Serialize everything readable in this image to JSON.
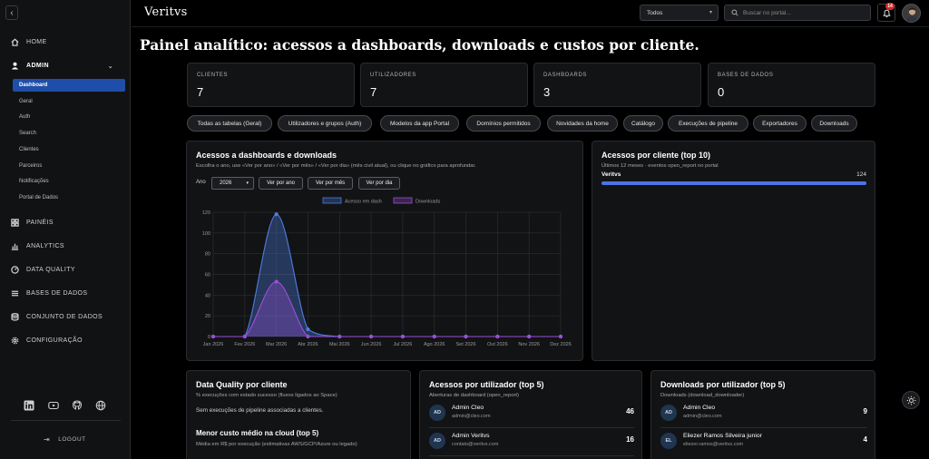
{
  "sidebar": {
    "items": [
      {
        "label": "HOME",
        "icon": "home-icon"
      },
      {
        "label": "ADMIN",
        "icon": "user-icon"
      },
      {
        "label": "PAINÉIS",
        "icon": "grid-icon"
      },
      {
        "label": "ANALYTICS",
        "icon": "bar-chart-icon"
      },
      {
        "label": "DATA QUALITY",
        "icon": "gauge-icon"
      },
      {
        "label": "BASES DE DADOS",
        "icon": "list-icon"
      },
      {
        "label": "CONJUNTO DE DADOS",
        "icon": "database-icon"
      },
      {
        "label": "CONFIGURAÇÃO",
        "icon": "gear-icon"
      }
    ],
    "admin_sub": [
      "Dashboard",
      "Geral",
      "Auth",
      "Search",
      "Clientes",
      "Parceiros",
      "Notificações",
      "Portal de Dados"
    ],
    "logout_label": "LOGOUT",
    "social": [
      "linkedin-icon",
      "youtube-icon",
      "github-icon",
      "globe-icon"
    ]
  },
  "topbar": {
    "logo": "Veritvs",
    "filter_value": "Todos",
    "search_placeholder": "Buscar no portal...",
    "notification_count": "14"
  },
  "page": {
    "title": "Painel analítico: acessos a dashboards, downloads e custos por cliente."
  },
  "stats": [
    {
      "label": "CLIENTES",
      "value": "7"
    },
    {
      "label": "UTILIZADORES",
      "value": "7"
    },
    {
      "label": "DASHBOARDS",
      "value": "3"
    },
    {
      "label": "BASES DE DADOS",
      "value": "0"
    }
  ],
  "chips": [
    "Todas as tabelas (Geral)",
    "Utilizadores e grupos (Auth)",
    "Modelos da app Portal",
    "Domínios permitidos",
    "Novidades da home",
    "Catálogo",
    "Execuções de pipeline",
    "Exportadores",
    "Downloads"
  ],
  "access_card": {
    "title": "Acessos a dashboards e downloads",
    "subtitle": "Escolha o ano, use «Ver por ano» / «Ver por mês» / «Ver por dia» (mês civil atual), ou clique no gráfico para aprofundar.",
    "year_label": "Ano",
    "year_value": "2026",
    "buttons": [
      "Ver por ano",
      "Ver por mês",
      "Ver por dia"
    ]
  },
  "chart_data": {
    "type": "line",
    "categories": [
      "Jan 2026",
      "Fev 2026",
      "Mar 2026",
      "Abr 2026",
      "Mai 2026",
      "Jun 2026",
      "Jul 2026",
      "Ago 2026",
      "Set 2026",
      "Out 2026",
      "Nov 2026",
      "Dez 2026"
    ],
    "series": [
      {
        "name": "Acesso em dash",
        "values": [
          0,
          0,
          118,
          7,
          0,
          0,
          0,
          0,
          0,
          0,
          0,
          0
        ],
        "color": "#4d7de0"
      },
      {
        "name": "Downloads",
        "values": [
          0,
          0,
          53,
          0,
          0,
          0,
          0,
          0,
          0,
          0,
          0,
          0
        ],
        "color": "#9b4fd6"
      }
    ],
    "ylim": [
      0,
      120
    ],
    "yticks": [
      0,
      20,
      40,
      60,
      80,
      100,
      120
    ],
    "grid": true,
    "legend": "top-center"
  },
  "client_card": {
    "title": "Acessos por cliente (top 10)",
    "subtitle": "Últimos 12 meses · eventos open_report no portal",
    "rows": [
      {
        "name": "Veritvs",
        "value": "124",
        "fraction": 1.0
      }
    ]
  },
  "dq_card": {
    "title": "Data Quality por cliente",
    "subtitle": "% execuções com estado sucesso (fluxos ligados ao Space)",
    "empty": "Sem execuções de pipeline associadas a clientes.",
    "section_title": "Menor custo médio na cloud (top 5)",
    "section_sub": "Média em R$ por execução (estimativas AWS/GCP/Azure ou legado)"
  },
  "users_card": {
    "title": "Acessos por utilizador (top 5)",
    "subtitle": "Aberturas de dashboard (open_report)",
    "rows": [
      {
        "initials": "AD",
        "name": "Admin Cleo",
        "email": "admin@cleo.com",
        "count": "46"
      },
      {
        "initials": "AD",
        "name": "Admin Veritvs",
        "email": "contato@veritvs.com",
        "count": "16"
      }
    ]
  },
  "downloads_card": {
    "title": "Downloads por utilizador (top 5)",
    "subtitle": "Downloads (download_downloader)",
    "rows": [
      {
        "initials": "AD",
        "name": "Admin Cleo",
        "email": "admin@cleo.com",
        "count": "9"
      },
      {
        "initials": "EL",
        "name": "Eliezer Ramos Silveira junior",
        "email": "eliezer.ramos@veritvs.com",
        "count": "4"
      }
    ]
  }
}
